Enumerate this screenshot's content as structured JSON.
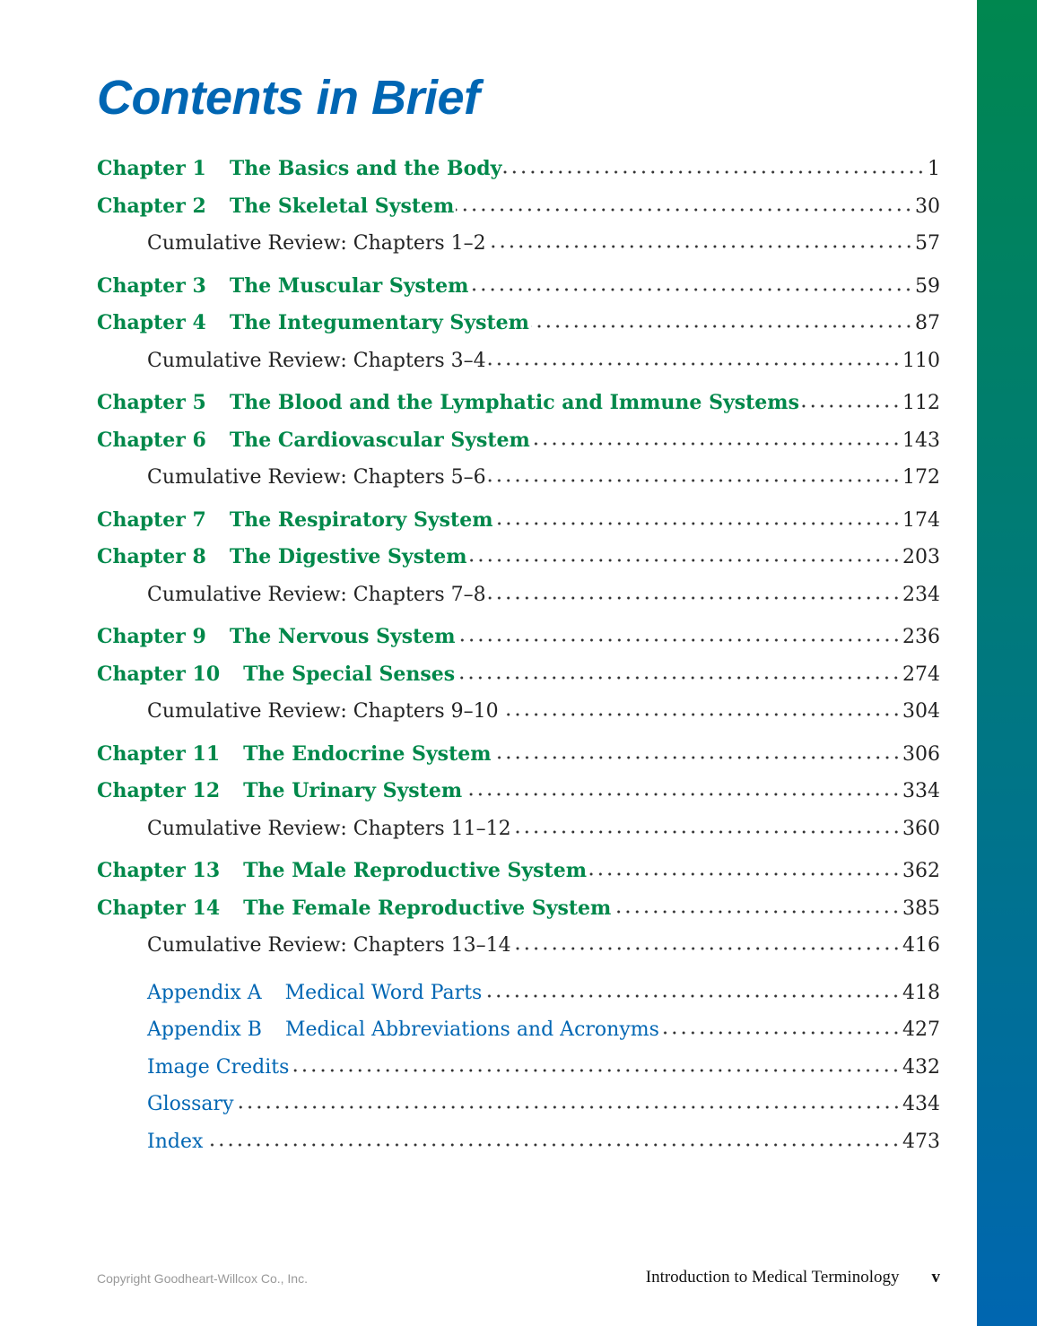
{
  "title": "Contents in Brief",
  "accent_colors": {
    "chapter": "#00884a",
    "appendix": "#0066b3",
    "title": "#0066b3"
  },
  "entries": [
    {
      "type": "chapter",
      "label": "Chapter 1",
      "title": "The Basics and the Body",
      "page": "1"
    },
    {
      "type": "chapter",
      "label": "Chapter 2",
      "title": "The Skeletal System",
      "page": "30"
    },
    {
      "type": "review",
      "label": "",
      "title": "Cumulative Review: Chapters 1–2",
      "page": "57"
    },
    {
      "type": "chapter",
      "label": "Chapter 3",
      "title": "The Muscular System",
      "page": "59"
    },
    {
      "type": "chapter",
      "label": "Chapter 4",
      "title": "The Integumentary System",
      "page": "87"
    },
    {
      "type": "review",
      "label": "",
      "title": "Cumulative Review: Chapters 3–4",
      "page": "110"
    },
    {
      "type": "chapter",
      "label": "Chapter 5",
      "title": "The Blood and the Lymphatic and Immune Systems",
      "page": "112"
    },
    {
      "type": "chapter",
      "label": "Chapter 6",
      "title": "The Cardiovascular System",
      "page": "143"
    },
    {
      "type": "review",
      "label": "",
      "title": "Cumulative Review: Chapters 5–6",
      "page": "172"
    },
    {
      "type": "chapter",
      "label": "Chapter 7",
      "title": "The Respiratory System",
      "page": "174"
    },
    {
      "type": "chapter",
      "label": "Chapter 8",
      "title": "The Digestive System",
      "page": "203"
    },
    {
      "type": "review",
      "label": "",
      "title": "Cumulative Review: Chapters 7–8",
      "page": "234"
    },
    {
      "type": "chapter",
      "label": "Chapter 9",
      "title": "The Nervous System",
      "page": "236"
    },
    {
      "type": "chapter",
      "label": "Chapter 10",
      "title": "The Special Senses",
      "page": "274"
    },
    {
      "type": "review",
      "label": "",
      "title": "Cumulative Review: Chapters 9–10",
      "page": "304"
    },
    {
      "type": "chapter",
      "label": "Chapter 11",
      "title": "The Endocrine System",
      "page": "306"
    },
    {
      "type": "chapter",
      "label": "Chapter 12",
      "title": "The Urinary System",
      "page": "334"
    },
    {
      "type": "review",
      "label": "",
      "title": "Cumulative Review: Chapters 11–12",
      "page": "360"
    },
    {
      "type": "chapter",
      "label": "Chapter 13",
      "title": "The Male Reproductive System",
      "page": "362"
    },
    {
      "type": "chapter",
      "label": "Chapter 14",
      "title": "The Female Reproductive System",
      "page": "385"
    },
    {
      "type": "review",
      "label": "",
      "title": "Cumulative Review: Chapters 13–14",
      "page": "416"
    },
    {
      "type": "appendix",
      "label": "Appendix A",
      "title": "Medical Word Parts",
      "page": "418"
    },
    {
      "type": "appendix",
      "label": "Appendix B",
      "title": "Medical Abbreviations and Acronyms",
      "page": "427"
    },
    {
      "type": "appendix",
      "label": "",
      "title": "Image Credits",
      "page": "432"
    },
    {
      "type": "appendix",
      "label": "",
      "title": "Glossary",
      "page": "434"
    },
    {
      "type": "appendix",
      "label": "",
      "title": "Index",
      "page": "473"
    }
  ],
  "footer": {
    "copyright": "Copyright Goodheart-Willcox Co., Inc.",
    "book_title": "Introduction to Medical Terminology",
    "page_number": "v"
  }
}
